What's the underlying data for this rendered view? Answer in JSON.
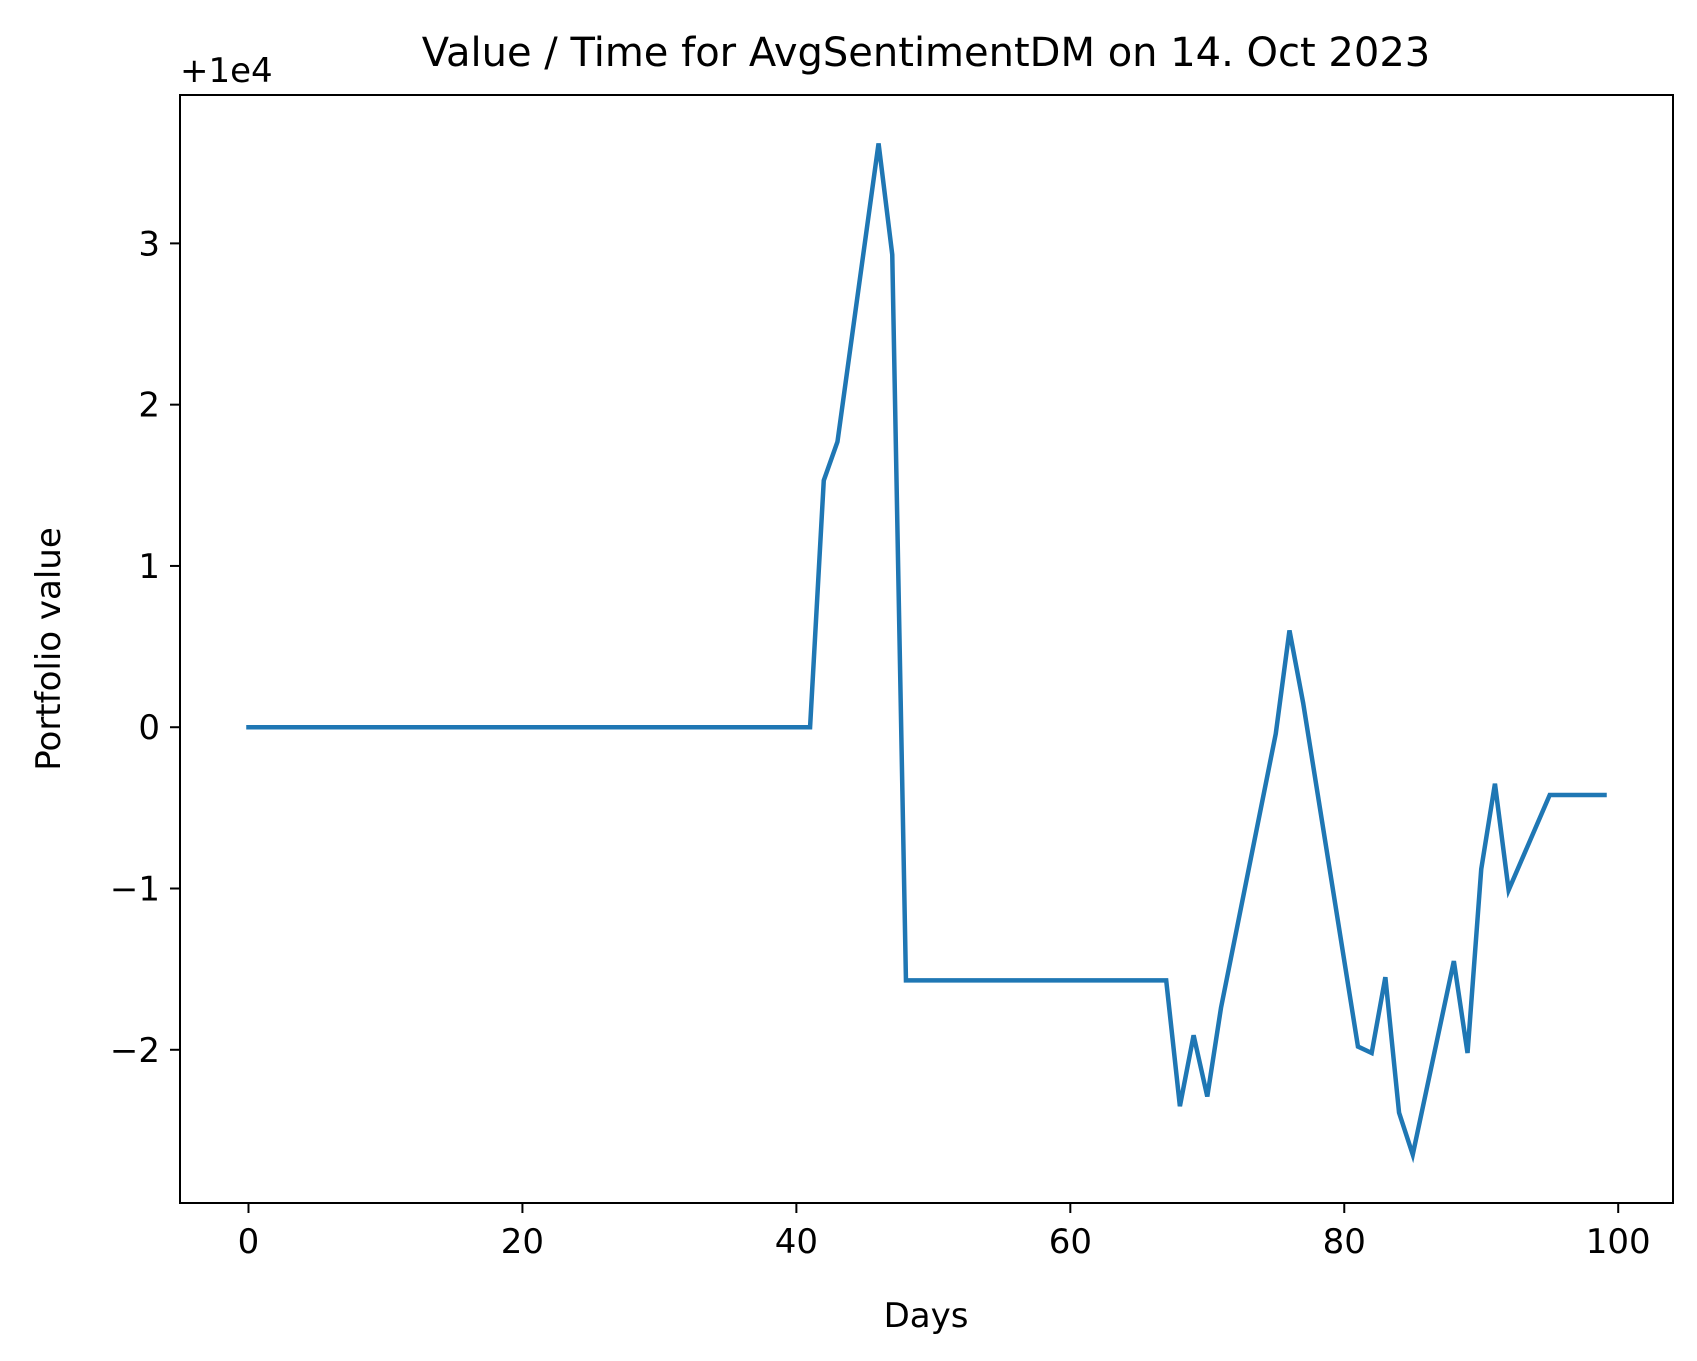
{
  "chart_data": {
    "type": "line",
    "title": "Value / Time for AvgSentimentDM on 14. Oct 2023",
    "xlabel": "Days",
    "ylabel": "Portfolio value",
    "y_offset_text": "+1e4",
    "y_offset": 10000,
    "xlim": [
      -5,
      104
    ],
    "ylim": [
      -2.95,
      3.92
    ],
    "x_ticks": [
      0,
      20,
      40,
      60,
      80,
      100
    ],
    "x_tick_labels": [
      "0",
      "20",
      "40",
      "60",
      "80",
      "100"
    ],
    "y_ticks": [
      -2,
      -1,
      0,
      1,
      2,
      3
    ],
    "y_tick_labels": [
      "−2",
      "−1",
      "0",
      "1",
      "2",
      "3"
    ],
    "grid": false,
    "line_color": "#1f77b4",
    "series": [
      {
        "x": [
          0,
          41,
          42,
          43,
          46,
          47,
          48,
          67,
          68,
          69,
          70,
          71,
          75,
          76,
          77,
          81,
          82,
          83,
          84,
          85,
          88,
          89,
          90,
          91,
          92,
          95,
          99
        ],
        "values": [
          0,
          0,
          1.53,
          1.77,
          3.62,
          2.93,
          -1.57,
          -1.57,
          -2.35,
          -1.91,
          -2.29,
          -1.74,
          -0.04,
          0.6,
          0.15,
          -1.98,
          -2.02,
          -1.55,
          -2.39,
          -2.65,
          -1.45,
          -2.02,
          -0.88,
          -0.35,
          -1.01,
          -0.42,
          -0.42
        ]
      }
    ]
  }
}
